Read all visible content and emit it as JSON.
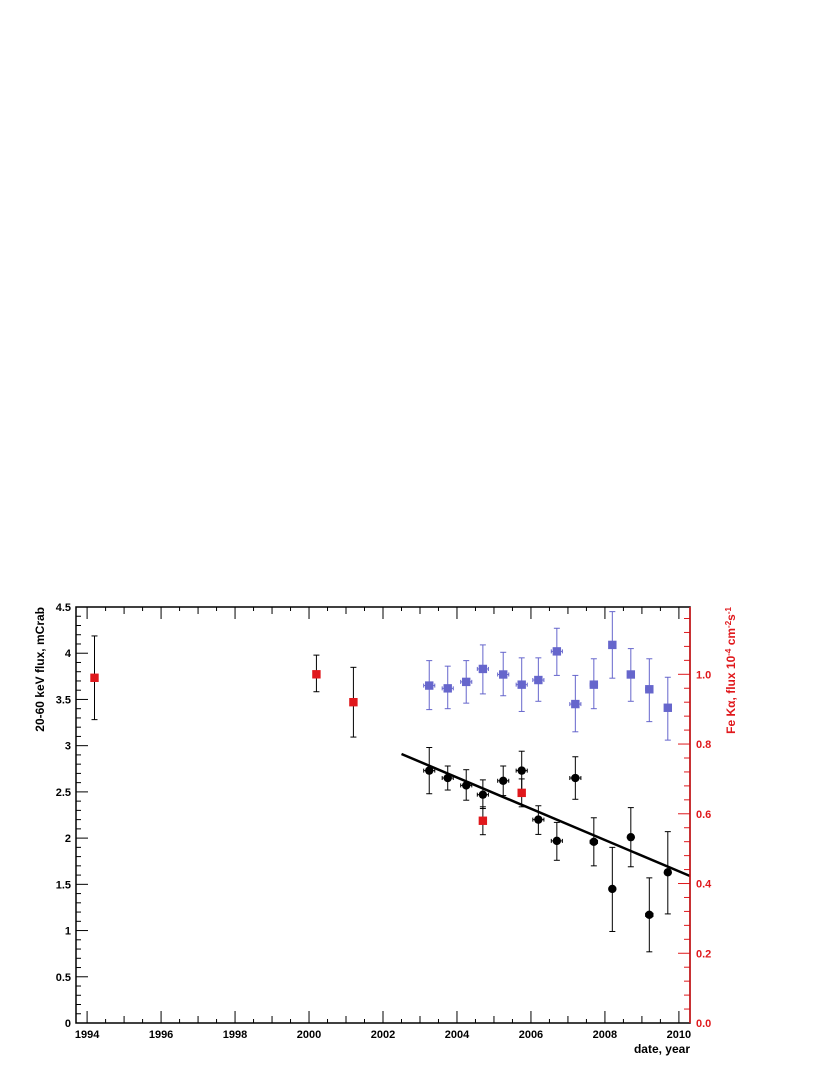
{
  "chart_data": {
    "type": "scatter",
    "x_axis": {
      "label": "date, year",
      "range": [
        1993.7,
        2010.3
      ],
      "ticks": [
        1994,
        1996,
        1998,
        2000,
        2002,
        2004,
        2006,
        2008,
        2010
      ]
    },
    "y_axis_left": {
      "label": "20-60 keV flux, mCrab",
      "range": [
        0,
        4.5
      ],
      "ticks": [
        "0",
        "0.5",
        "1",
        "1.5",
        "2",
        "2.5",
        "3",
        "3.5",
        "4",
        "4.5"
      ]
    },
    "y_axis_right": {
      "label_main": "Fe K",
      "label_alpha": "α",
      "label_rest": ", flux 10",
      "label_exp1": "-4",
      "label_unit": " cm",
      "label_exp2": "-2",
      "label_unit2": "s",
      "label_exp3": "-1",
      "range": [
        0,
        1.193
      ],
      "ticks": [
        "0.0",
        "0.2",
        "0.4",
        "0.6",
        "0.8",
        "1.0"
      ]
    },
    "colors": {
      "black_series": "#000000",
      "blue_series": "#6666cc",
      "red_series": "#e0181c",
      "fit_line": "#000000"
    },
    "series": [
      {
        "marker": "circle",
        "color": "#000000",
        "axis": "left",
        "points": [
          {
            "x": 2003.25,
            "y": 2.73,
            "ylo": 2.48,
            "yhi": 2.98,
            "xerr": 0.15
          },
          {
            "x": 2003.75,
            "y": 2.65,
            "ylo": 2.52,
            "yhi": 2.78,
            "xerr": 0.15
          },
          {
            "x": 2004.25,
            "y": 2.57,
            "ylo": 2.41,
            "yhi": 2.74,
            "xerr": 0.15
          },
          {
            "x": 2004.7,
            "y": 2.47,
            "ylo": 2.32,
            "yhi": 2.63,
            "xerr": 0.15
          },
          {
            "x": 2005.25,
            "y": 2.62,
            "ylo": 2.46,
            "yhi": 2.78,
            "xerr": 0.15
          },
          {
            "x": 2005.75,
            "y": 2.73,
            "ylo": 2.52,
            "yhi": 2.94,
            "xerr": 0.15
          },
          {
            "x": 2006.2,
            "y": 2.2,
            "ylo": 2.04,
            "yhi": 2.35,
            "xerr": 0.15
          },
          {
            "x": 2006.7,
            "y": 1.97,
            "ylo": 1.76,
            "yhi": 2.17,
            "xerr": 0.15
          },
          {
            "x": 2007.2,
            "y": 2.65,
            "ylo": 2.42,
            "yhi": 2.88,
            "xerr": 0.15
          },
          {
            "x": 2007.7,
            "y": 1.96,
            "ylo": 1.7,
            "yhi": 2.22,
            "xerr": 0.1
          },
          {
            "x": 2008.2,
            "y": 1.45,
            "ylo": 0.99,
            "yhi": 1.9,
            "xerr": 0.05
          },
          {
            "x": 2008.7,
            "y": 2.01,
            "ylo": 1.69,
            "yhi": 2.33,
            "xerr": 0.05
          },
          {
            "x": 2009.2,
            "y": 1.17,
            "ylo": 0.77,
            "yhi": 1.57,
            "xerr": 0.1
          },
          {
            "x": 2009.7,
            "y": 1.63,
            "ylo": 1.18,
            "yhi": 2.07,
            "xerr": 0.05
          }
        ]
      },
      {
        "marker": "square",
        "color": "#6666cc",
        "axis": "left",
        "points": [
          {
            "x": 2003.25,
            "y": 3.65,
            "ylo": 3.39,
            "yhi": 3.92,
            "xerr": 0.15
          },
          {
            "x": 2003.75,
            "y": 3.62,
            "ylo": 3.4,
            "yhi": 3.86,
            "xerr": 0.15
          },
          {
            "x": 2004.25,
            "y": 3.69,
            "ylo": 3.46,
            "yhi": 3.92,
            "xerr": 0.15
          },
          {
            "x": 2004.7,
            "y": 3.83,
            "ylo": 3.56,
            "yhi": 4.09,
            "xerr": 0.15
          },
          {
            "x": 2005.25,
            "y": 3.77,
            "ylo": 3.54,
            "yhi": 4.01,
            "xerr": 0.15
          },
          {
            "x": 2005.75,
            "y": 3.66,
            "ylo": 3.37,
            "yhi": 3.95,
            "xerr": 0.15
          },
          {
            "x": 2006.2,
            "y": 3.71,
            "ylo": 3.48,
            "yhi": 3.95,
            "xerr": 0.15
          },
          {
            "x": 2006.7,
            "y": 4.02,
            "ylo": 3.76,
            "yhi": 4.27,
            "xerr": 0.15
          },
          {
            "x": 2007.2,
            "y": 3.45,
            "ylo": 3.15,
            "yhi": 3.76,
            "xerr": 0.15
          },
          {
            "x": 2007.7,
            "y": 3.66,
            "ylo": 3.4,
            "yhi": 3.94,
            "xerr": 0.1
          },
          {
            "x": 2008.2,
            "y": 4.09,
            "ylo": 3.73,
            "yhi": 4.45,
            "xerr": 0.05
          },
          {
            "x": 2008.7,
            "y": 3.77,
            "ylo": 3.48,
            "yhi": 4.05,
            "xerr": 0.05
          },
          {
            "x": 2009.2,
            "y": 3.61,
            "ylo": 3.26,
            "yhi": 3.94,
            "xerr": 0.1
          },
          {
            "x": 2009.7,
            "y": 3.41,
            "ylo": 3.06,
            "yhi": 3.74,
            "xerr": 0.05
          }
        ]
      },
      {
        "marker": "square",
        "color": "#e0181c",
        "axis": "right",
        "points": [
          {
            "x": 1994.2,
            "y": 0.99,
            "ylo": 0.87,
            "yhi": 1.11
          },
          {
            "x": 2000.2,
            "y": 1.0,
            "ylo": 0.95,
            "yhi": 1.055
          },
          {
            "x": 2001.2,
            "y": 0.92,
            "ylo": 0.82,
            "yhi": 1.02
          },
          {
            "x": 2004.7,
            "y": 0.58,
            "ylo": 0.54,
            "yhi": 0.62
          },
          {
            "x": 2005.75,
            "y": 0.66,
            "ylo": 0.62,
            "yhi": 0.7
          }
        ]
      }
    ],
    "fit_line": {
      "x": [
        2002.5,
        2010.3
      ],
      "y": [
        2.91,
        1.59
      ]
    }
  }
}
